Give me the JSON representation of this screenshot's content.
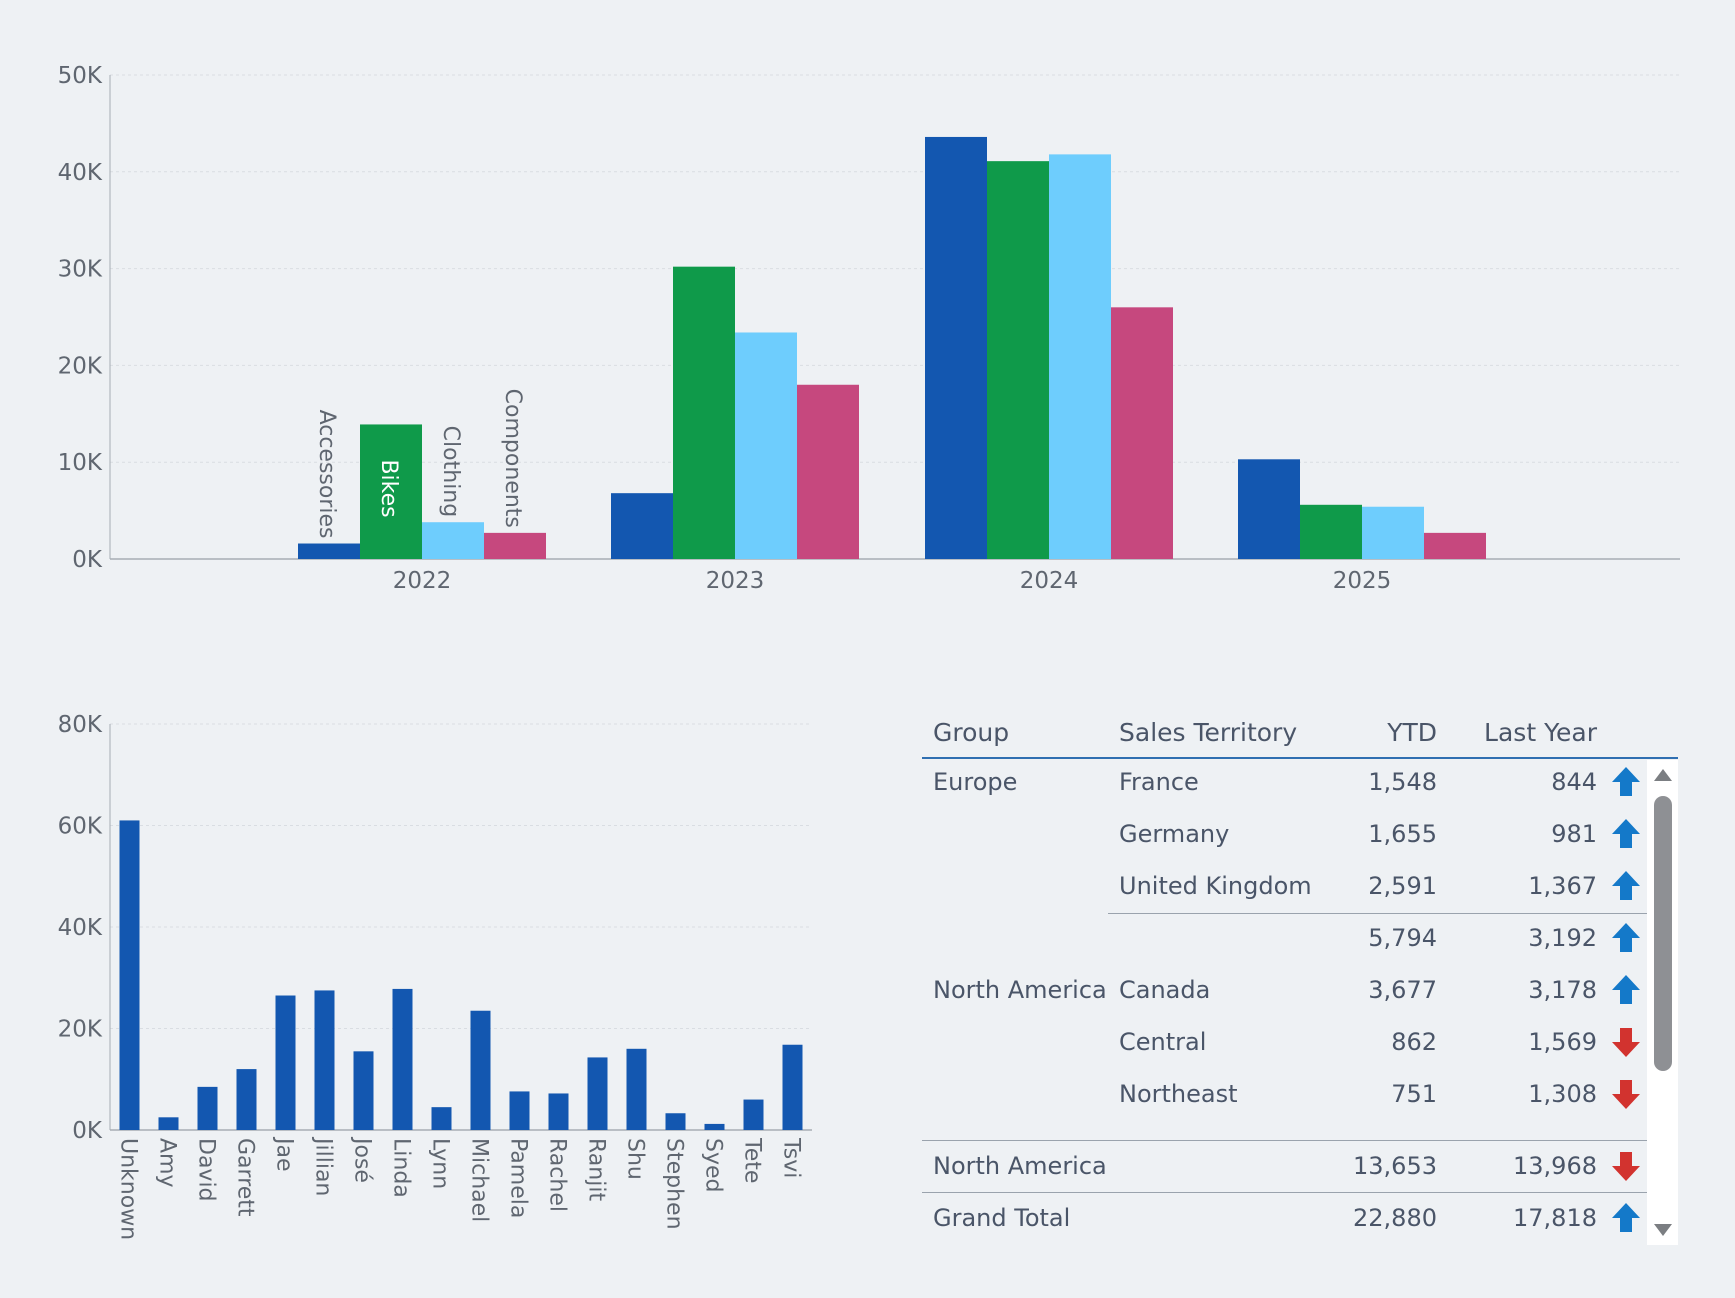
{
  "top_chart": {
    "chart_data": {
      "type": "bar",
      "categories": [
        "2022",
        "2023",
        "2024",
        "2025"
      ],
      "series": [
        {
          "name": "Accessories",
          "color": "#1357b0",
          "values": [
            1600,
            6800,
            43600,
            10300
          ]
        },
        {
          "name": "Bikes",
          "color": "#0f9a4a",
          "values": [
            13900,
            30200,
            41100,
            5600
          ]
        },
        {
          "name": "Clothing",
          "color": "#6ecdfd",
          "values": [
            3800,
            23400,
            41800,
            5400
          ]
        },
        {
          "name": "Components",
          "color": "#c6487e",
          "values": [
            2700,
            18000,
            26000,
            2700
          ]
        }
      ],
      "y_ticks": [
        "0K",
        "10K",
        "20K",
        "30K",
        "40K",
        "50K"
      ],
      "ylim": [
        0,
        50000
      ],
      "inline_labels_category": "2022"
    }
  },
  "bottom_chart": {
    "chart_data": {
      "type": "bar",
      "categories": [
        "Unknown",
        "Amy",
        "David",
        "Garrett",
        "Jae",
        "Jillian",
        "José",
        "Linda",
        "Lynn",
        "Michael",
        "Pamela",
        "Rachel",
        "Ranjit",
        "Shu",
        "Stephen",
        "Syed",
        "Tete",
        "Tsvi"
      ],
      "values": [
        61000,
        2500,
        8500,
        12000,
        26500,
        27500,
        15500,
        27800,
        4500,
        23500,
        7600,
        7200,
        14300,
        16000,
        3300,
        1200,
        6000,
        16800
      ],
      "color": "#1357b0",
      "y_ticks": [
        "0K",
        "20K",
        "40K",
        "60K",
        "80K"
      ],
      "ylim": [
        0,
        80000
      ]
    }
  },
  "table": {
    "headers": {
      "group": "Group",
      "territory": "Sales Territory",
      "ytd": "YTD",
      "last_year": "Last Year"
    },
    "rows": [
      {
        "group": "Europe",
        "territory": "France",
        "ytd": "1,548",
        "last_year": "844",
        "trend": "up"
      },
      {
        "group": "",
        "territory": "Germany",
        "ytd": "1,655",
        "last_year": "981",
        "trend": "up"
      },
      {
        "group": "",
        "territory": "United Kingdom",
        "ytd": "2,591",
        "last_year": "1,367",
        "trend": "up"
      },
      {
        "group": "",
        "territory": "",
        "ytd": "5,794",
        "last_year": "3,192",
        "trend": "up"
      },
      {
        "group": "North America",
        "territory": "Canada",
        "ytd": "3,677",
        "last_year": "3,178",
        "trend": "up"
      },
      {
        "group": "",
        "territory": "Central",
        "ytd": "862",
        "last_year": "1,569",
        "trend": "down"
      },
      {
        "group": "",
        "territory": "Northeast",
        "ytd": "751",
        "last_year": "1,308",
        "trend": "down"
      }
    ],
    "footer_rows": [
      {
        "group": "North America",
        "ytd": "13,653",
        "last_year": "13,968",
        "trend": "down"
      },
      {
        "group": "Grand Total",
        "ytd": "22,880",
        "last_year": "17,818",
        "trend": "up"
      }
    ],
    "colors": {
      "up": "#1479c9",
      "down": "#d2332f"
    }
  }
}
